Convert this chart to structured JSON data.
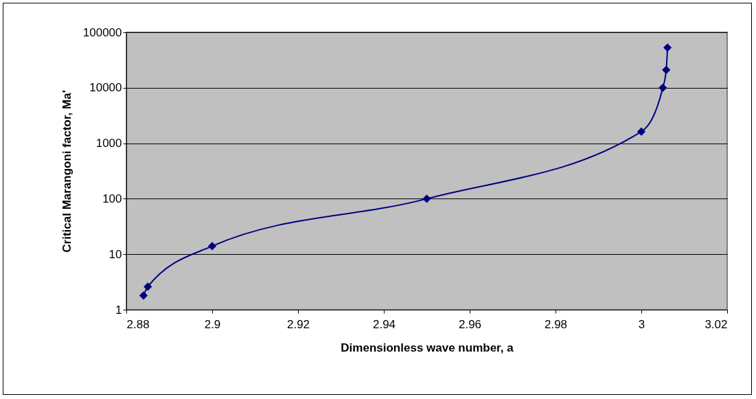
{
  "chart_data": {
    "type": "line",
    "xlabel": "Dimensionless wave number, a",
    "ylabel": "Critical Marangoni factor, Ma'",
    "x": [
      2.884,
      2.885,
      2.9,
      2.95,
      3.0,
      3.005,
      3.0058,
      3.0061
    ],
    "series": [
      {
        "color": "#000080",
        "values": [
          1.8,
          2.6,
          14,
          100,
          1620,
          10000,
          21000,
          53000
        ]
      }
    ],
    "xlim": [
      2.88,
      3.02
    ],
    "xticks": [
      2.88,
      2.9,
      2.92,
      2.94,
      2.96,
      2.98,
      3,
      3.02
    ],
    "ylim": [
      1,
      100000
    ],
    "yticks": [
      1,
      10,
      100,
      1000,
      10000,
      100000
    ],
    "log": "y",
    "grid": "y",
    "marker": "diamond",
    "line_style": "solid",
    "legend": false
  }
}
